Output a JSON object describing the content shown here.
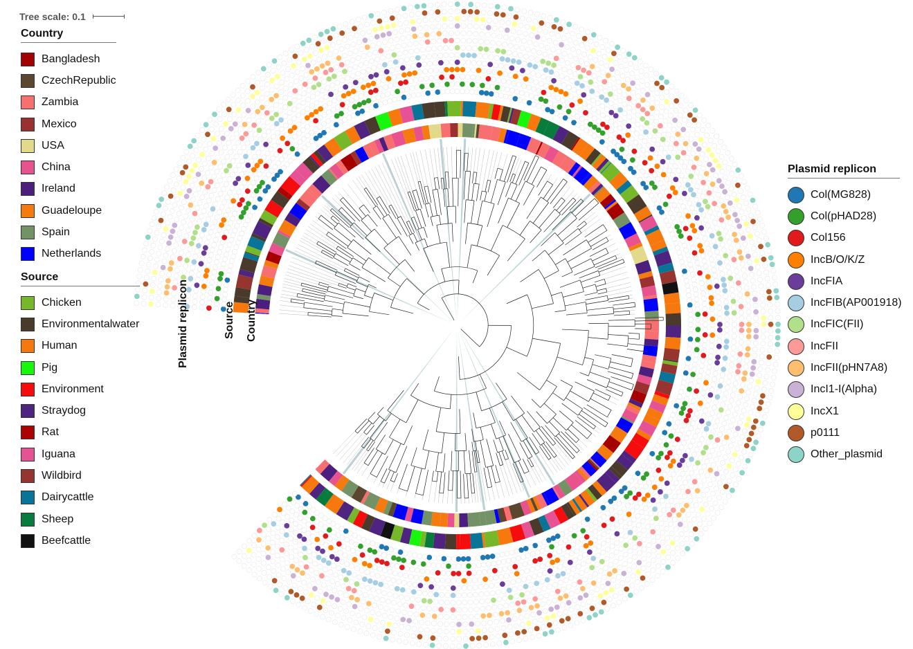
{
  "scale": {
    "label": "Tree scale: 0.1"
  },
  "ring_labels": {
    "plasmid": "Plasmid replicon",
    "source": "Source",
    "country": "Country"
  },
  "country_legend": {
    "title": "Country",
    "items": [
      {
        "label": "Bangladesh",
        "color": "#a50000"
      },
      {
        "label": "CzechRepublic",
        "color": "#5b4630"
      },
      {
        "label": "Zambia",
        "color": "#f86f6f"
      },
      {
        "label": "Mexico",
        "color": "#9b3030"
      },
      {
        "label": "USA",
        "color": "#e2d98b"
      },
      {
        "label": "China",
        "color": "#e8538d"
      },
      {
        "label": "Ireland",
        "color": "#4c1f7e"
      },
      {
        "label": "Guadeloupe",
        "color": "#f57a10"
      },
      {
        "label": "Spain",
        "color": "#739265"
      },
      {
        "label": "Netherlands",
        "color": "#0000ff"
      }
    ]
  },
  "source_legend": {
    "title": "Source",
    "items": [
      {
        "label": "Chicken",
        "color": "#77b72a"
      },
      {
        "label": "Environmentalwater",
        "color": "#4a3a2c"
      },
      {
        "label": "Human",
        "color": "#f7780c"
      },
      {
        "label": "Pig",
        "color": "#17f70b"
      },
      {
        "label": "Environment",
        "color": "#f50c0c"
      },
      {
        "label": "Straydog",
        "color": "#4e2480"
      },
      {
        "label": "Rat",
        "color": "#ad0202"
      },
      {
        "label": "Iguana",
        "color": "#e65395"
      },
      {
        "label": "Wildbird",
        "color": "#96342f"
      },
      {
        "label": "Dairycattle",
        "color": "#087598"
      },
      {
        "label": "Sheep",
        "color": "#077c3c"
      },
      {
        "label": "Beefcattle",
        "color": "#111111"
      }
    ]
  },
  "plasmid_legend": {
    "title": "Plasmid replicon",
    "items": [
      {
        "label": "Col(MG828)",
        "color": "#1f78b4"
      },
      {
        "label": "Col(pHAD28)",
        "color": "#33a02c"
      },
      {
        "label": "Col156",
        "color": "#e31a1c"
      },
      {
        "label": "IncB/O/K/Z",
        "color": "#ff7f00"
      },
      {
        "label": "IncFIA",
        "color": "#6a3d9a"
      },
      {
        "label": "IncFIB(AP001918)",
        "color": "#a6cee3"
      },
      {
        "label": "IncFIC(FII)",
        "color": "#b2df8a"
      },
      {
        "label": "IncFII",
        "color": "#fb9a99"
      },
      {
        "label": "IncFII(pHN7A8)",
        "color": "#fdbf6f"
      },
      {
        "label": "IncI1-I(Alpha)",
        "color": "#cab2d6"
      },
      {
        "label": "IncX1",
        "color": "#ffff99"
      },
      {
        "label": "p0111",
        "color": "#b15928"
      },
      {
        "label": "Other_plasmid",
        "color": "#8dd3c7"
      }
    ]
  }
}
